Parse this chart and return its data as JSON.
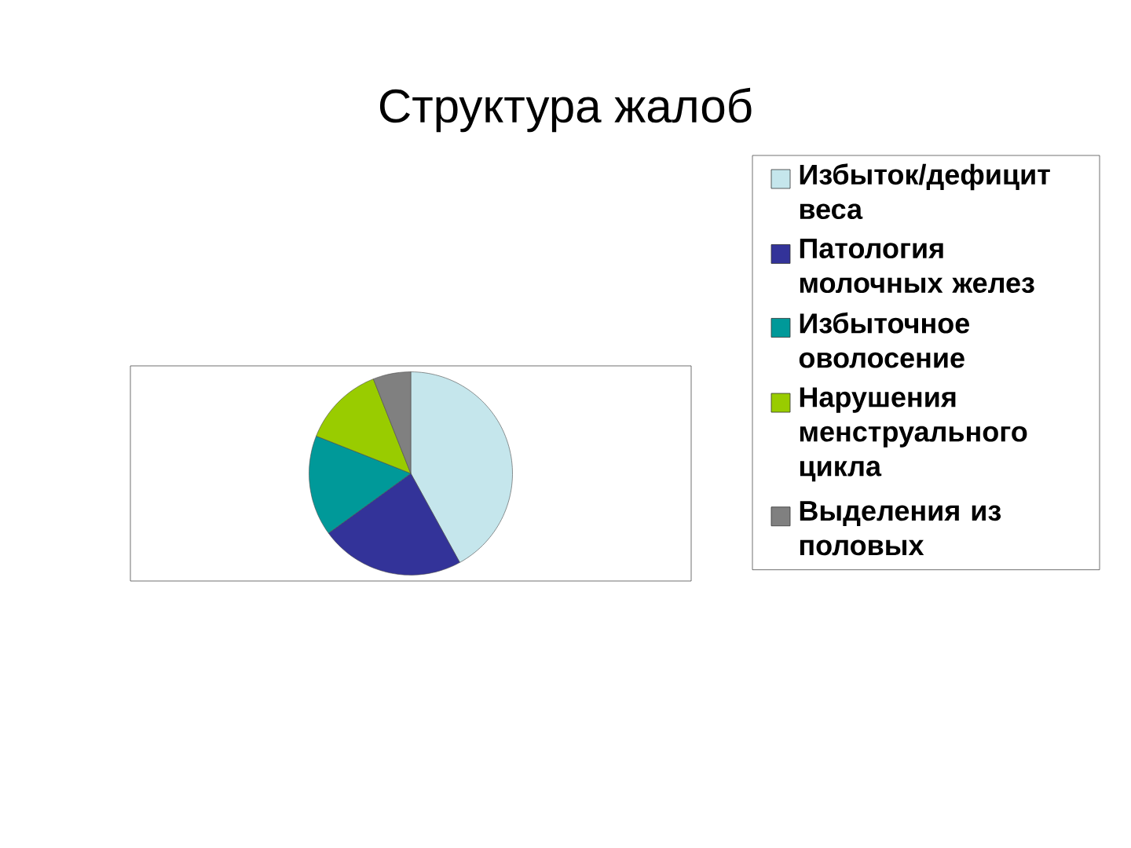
{
  "chart_data": {
    "type": "pie",
    "title": "Структура жалоб",
    "categories": [
      "Избыток/дефицит веса",
      "Патология молочных желез",
      "Избыточное оволосение",
      "Нарушения менструального цикла",
      "Выделения из половых"
    ],
    "values": [
      42,
      23,
      16,
      13,
      6
    ],
    "colors": [
      "#c5e6ec",
      "#333399",
      "#009999",
      "#99cc00",
      "#808080"
    ],
    "legend": "right"
  }
}
